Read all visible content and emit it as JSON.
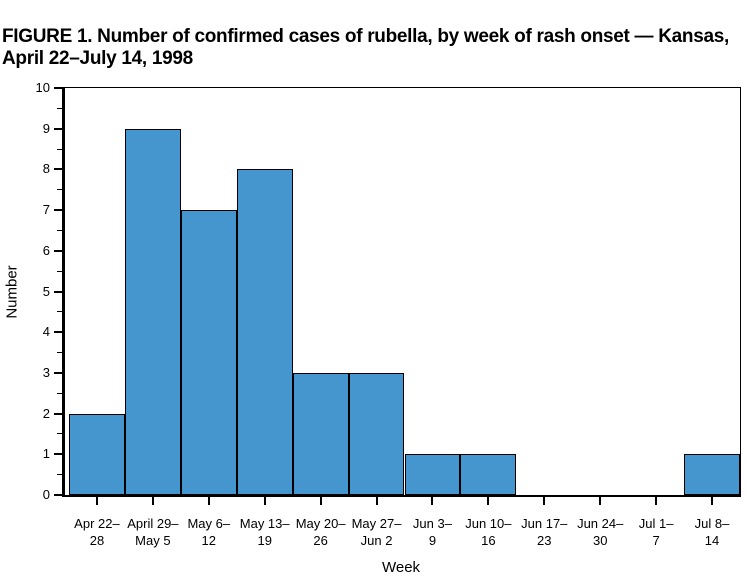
{
  "figure": {
    "title_lines": [
      "FIGURE 1. Number of confirmed cases of rubella, by week of rash onset — Kansas,",
      "April 22–July 14, 1998"
    ]
  },
  "chart_data": {
    "type": "bar",
    "title": "FIGURE 1. Number of confirmed cases of rubella, by week of rash onset — Kansas, April 22–July 14, 1998",
    "xlabel": "Week",
    "ylabel": "Number",
    "categories": [
      "Apr 22–28",
      "April 29–May 5",
      "May 6–12",
      "May 13–19",
      "May 20–26",
      "May 27–Jun 2",
      "Jun 3–9",
      "Jun 10–16",
      "Jun 17–23",
      "Jun 24–30",
      "Jul 1–7",
      "Jul 8–14"
    ],
    "category_tick_lines": [
      [
        "Apr 22–",
        "28"
      ],
      [
        "April 29–",
        "May 5"
      ],
      [
        "May 6–",
        "12"
      ],
      [
        "May 13–",
        "19"
      ],
      [
        "May 20–",
        "26"
      ],
      [
        "May 27–",
        "Jun 2"
      ],
      [
        "Jun 3–",
        "9"
      ],
      [
        "Jun 10–",
        "16"
      ],
      [
        "Jun 17–",
        "23"
      ],
      [
        "Jun 24–",
        "30"
      ],
      [
        "Jul 1–",
        "7"
      ],
      [
        "Jul 8–",
        "14"
      ]
    ],
    "values": [
      2,
      9,
      7,
      8,
      3,
      3,
      1,
      1,
      0,
      0,
      0,
      1
    ],
    "y_tick_labels": [
      "0",
      "1",
      "2",
      "3",
      "4",
      "5",
      "6",
      "7",
      "8",
      "9",
      "10"
    ],
    "ylim": [
      0,
      10
    ],
    "y_major_step": 1,
    "y_minor_step": 0.5,
    "grid": false,
    "legend_position": "none",
    "bar_color": "#4596CE",
    "bar_border_color": "#000000",
    "axis_color": "#000000",
    "background_color": "#FFFFFF"
  }
}
